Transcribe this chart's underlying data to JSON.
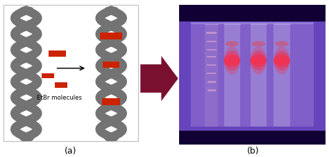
{
  "fig_width": 4.74,
  "fig_height": 2.27,
  "dpi": 100,
  "panel_a_label": "(a)",
  "panel_b_label": "(b)",
  "background_color": "#ffffff",
  "dna_color": "#737373",
  "etbr_color": "#cc2200",
  "big_arrow_color": "#7a1030",
  "label_fontsize": 9,
  "etbr_label": "EtBr molecules",
  "gel_inner_bg": "#7766cc",
  "gel_outer_bg": "#5533bb",
  "gel_dark_stripe": "#110033",
  "gel_lane_color": "#9988dd",
  "gel_band_pink": "#dd4455",
  "gel_ladder_color": "#bb99cc"
}
